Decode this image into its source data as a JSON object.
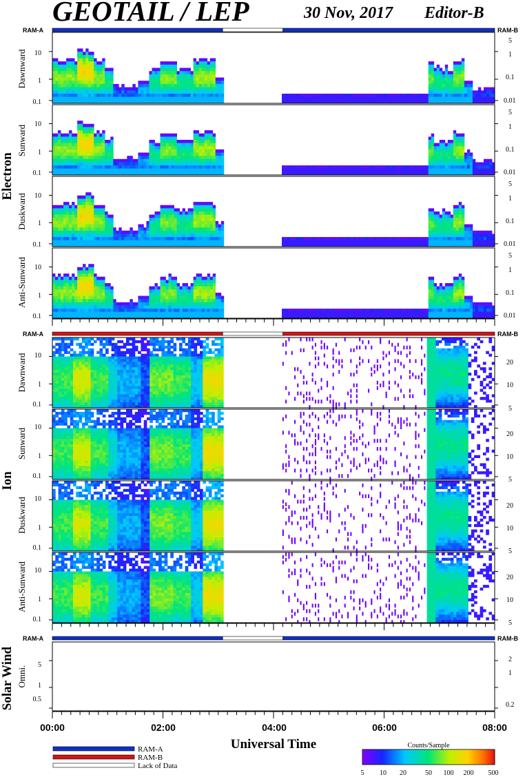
{
  "header": {
    "title": "GEOTAIL / LEP",
    "date": "30 Nov, 2017",
    "editor": "Editor-B"
  },
  "ram": {
    "a_label": "RAM-A",
    "b_label": "RAM-B"
  },
  "groups": [
    {
      "label": "Electron"
    },
    {
      "label": "Ion"
    },
    {
      "label": "Solar Wind"
    }
  ],
  "panels": [
    {
      "label": "Dawnward",
      "group": "Electron"
    },
    {
      "label": "Sunward",
      "group": "Electron"
    },
    {
      "label": "Duskward",
      "group": "Electron"
    },
    {
      "label": "Anti-Sunward",
      "group": "Electron"
    },
    {
      "label": "Dawnward",
      "group": "Ion"
    },
    {
      "label": "Sunward",
      "group": "Ion"
    },
    {
      "label": "Duskward",
      "group": "Ion"
    },
    {
      "label": "Anti-Sunward",
      "group": "Ion"
    },
    {
      "label": "Omni.",
      "group": "Solar Wind"
    }
  ],
  "xaxis": {
    "label": "Universal Time",
    "ticks": [
      "00:00",
      "02:00",
      "04:00",
      "06:00",
      "08:00"
    ]
  },
  "legend": {
    "items": [
      {
        "label": "RAM-A",
        "color": "#1030c8"
      },
      {
        "label": "RAM-B",
        "color": "#d41414"
      },
      {
        "label": "Lack of Data",
        "color": "#ffffff"
      }
    ]
  },
  "colorbar": {
    "title": "Counts/Sample",
    "ticks": [
      "5",
      "10",
      "20",
      "50",
      "100",
      "200",
      "500"
    ]
  },
  "colors": {
    "ram_a": "#1030c8",
    "ram_b": "#d41414",
    "lack": "#ffffff"
  },
  "chart_data": {
    "type": "heatmap",
    "x_range_hours": [
      0,
      8
    ],
    "data_gap_hours": [
      3.08,
      4.17
    ],
    "ram_bars": [
      {
        "panel_group": "Electron",
        "segments": [
          {
            "from": 0,
            "to": 3.08,
            "mode": "RAM-A"
          },
          {
            "from": 3.08,
            "to": 4.17,
            "mode": "Lack of Data"
          },
          {
            "from": 4.17,
            "to": 8,
            "mode": "RAM-A"
          }
        ]
      },
      {
        "panel_group": "Ion",
        "segments": [
          {
            "from": 0,
            "to": 3.08,
            "mode": "RAM-B"
          },
          {
            "from": 3.08,
            "to": 4.17,
            "mode": "Lack of Data"
          },
          {
            "from": 4.17,
            "to": 8,
            "mode": "RAM-B"
          }
        ]
      },
      {
        "panel_group": "Solar Wind",
        "segments": [
          {
            "from": 0,
            "to": 3.08,
            "mode": "RAM-A"
          },
          {
            "from": 3.08,
            "to": 4.17,
            "mode": "Lack of Data"
          },
          {
            "from": 4.17,
            "to": 8,
            "mode": "RAM-A"
          }
        ]
      }
    ],
    "electron_axes": {
      "left_ticks": [
        "0.1",
        "1",
        "10"
      ],
      "right_ticks": [
        "0.01",
        "0.1",
        "1",
        "5"
      ]
    },
    "ion_axes": {
      "left_ticks": [
        "0.1",
        "1",
        "10"
      ],
      "right_ticks": [
        "5",
        "10",
        "20"
      ]
    },
    "solarwind_axes": {
      "left_ticks": [
        "0.5",
        "1",
        "5"
      ],
      "right_ticks": [
        "0.2",
        "1",
        "2"
      ]
    },
    "colorbar_range": [
      5,
      500
    ]
  }
}
